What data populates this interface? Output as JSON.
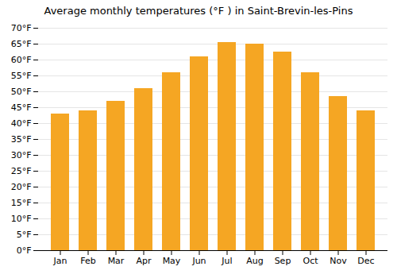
{
  "chart_data": {
    "type": "bar",
    "title": "Average monthly temperatures (°F ) in Saint-Brevin-les-Pins",
    "categories": [
      "Jan",
      "Feb",
      "Mar",
      "Apr",
      "May",
      "Jun",
      "Jul",
      "Aug",
      "Sep",
      "Oct",
      "Nov",
      "Dec"
    ],
    "values": [
      43,
      44,
      47,
      51,
      56,
      61,
      65.5,
      65,
      62.5,
      56,
      48.5,
      44
    ],
    "color": "#F5A623",
    "ylim": [
      0,
      70
    ],
    "yticks": [
      {
        "value": 0,
        "label": "0°F"
      },
      {
        "value": 5,
        "label": "5°F"
      },
      {
        "value": 10,
        "label": "10°F"
      },
      {
        "value": 15,
        "label": "15°F"
      },
      {
        "value": 20,
        "label": "20°F"
      },
      {
        "value": 25,
        "label": "25°F"
      },
      {
        "value": 30,
        "label": "30°F"
      },
      {
        "value": 35,
        "label": "35°F"
      },
      {
        "value": 40,
        "label": "40°F"
      },
      {
        "value": 45,
        "label": "45°F"
      },
      {
        "value": 50,
        "label": "50°F"
      },
      {
        "value": 55,
        "label": "55°F"
      },
      {
        "value": 60,
        "label": "60°F"
      },
      {
        "value": 65,
        "label": "65°F"
      },
      {
        "value": 70,
        "label": "70°F"
      }
    ],
    "grid": true
  }
}
